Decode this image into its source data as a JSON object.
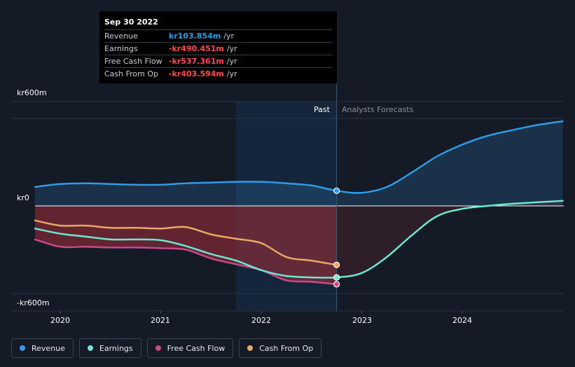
{
  "tooltip": {
    "date": "Sep 30 2022",
    "rows": [
      {
        "label": "Revenue",
        "value": "kr103.854m",
        "unit": "/yr",
        "color": "#2e9be9"
      },
      {
        "label": "Earnings",
        "value": "-kr490.451m",
        "unit": "/yr",
        "color": "#ff4d4f"
      },
      {
        "label": "Free Cash Flow",
        "value": "-kr537.361m",
        "unit": "/yr",
        "color": "#ff4d4f"
      },
      {
        "label": "Cash From Op",
        "value": "-kr403.594m",
        "unit": "/yr",
        "color": "#ff4d4f"
      }
    ]
  },
  "periods": {
    "past": "Past",
    "forecast": "Analysts Forecasts"
  },
  "legend": [
    {
      "label": "Revenue",
      "color": "#2e9be9"
    },
    {
      "label": "Earnings",
      "color": "#6ee7d0"
    },
    {
      "label": "Free Cash Flow",
      "color": "#c9488a"
    },
    {
      "label": "Cash From Op",
      "color": "#e8a866"
    }
  ],
  "chart_data": {
    "type": "line",
    "x_unit": "year",
    "y_unit": "kr m",
    "ylim": [
      -600,
      600
    ],
    "y_ticks": [
      {
        "value": 600,
        "label": "kr600m"
      },
      {
        "value": 0,
        "label": "kr0"
      },
      {
        "value": -600,
        "label": "-kr600m"
      }
    ],
    "x_ticks": [
      {
        "value": 2020,
        "label": "2020"
      },
      {
        "value": 2021,
        "label": "2021"
      },
      {
        "value": 2022,
        "label": "2022"
      },
      {
        "value": 2023,
        "label": "2023"
      },
      {
        "value": 2024,
        "label": "2024"
      }
    ],
    "xlim": [
      2019.5,
      2025.0
    ],
    "past_end": 2022.75,
    "highlight_start": 2021.75,
    "series": [
      {
        "name": "Revenue",
        "color": "#2e9be9",
        "points": [
          [
            2019.75,
            130
          ],
          [
            2020.0,
            150
          ],
          [
            2020.25,
            155
          ],
          [
            2020.5,
            150
          ],
          [
            2020.75,
            145
          ],
          [
            2021.0,
            145
          ],
          [
            2021.25,
            155
          ],
          [
            2021.5,
            160
          ],
          [
            2021.75,
            165
          ],
          [
            2022.0,
            165
          ],
          [
            2022.25,
            155
          ],
          [
            2022.5,
            140
          ],
          [
            2022.75,
            104
          ],
          [
            2023.0,
            90
          ],
          [
            2023.25,
            130
          ],
          [
            2023.5,
            230
          ],
          [
            2023.75,
            340
          ],
          [
            2024.0,
            420
          ],
          [
            2024.25,
            480
          ],
          [
            2024.5,
            520
          ],
          [
            2024.75,
            555
          ],
          [
            2025.0,
            580
          ]
        ]
      },
      {
        "name": "Earnings",
        "color": "#6ee7d0",
        "points": [
          [
            2019.75,
            -155
          ],
          [
            2020.0,
            -190
          ],
          [
            2020.25,
            -210
          ],
          [
            2020.5,
            -230
          ],
          [
            2020.75,
            -230
          ],
          [
            2021.0,
            -235
          ],
          [
            2021.25,
            -275
          ],
          [
            2021.5,
            -330
          ],
          [
            2021.75,
            -375
          ],
          [
            2022.0,
            -440
          ],
          [
            2022.25,
            -480
          ],
          [
            2022.5,
            -490
          ],
          [
            2022.75,
            -490
          ],
          [
            2023.0,
            -460
          ],
          [
            2023.25,
            -350
          ],
          [
            2023.5,
            -200
          ],
          [
            2023.75,
            -70
          ],
          [
            2024.0,
            -20
          ],
          [
            2024.25,
            0
          ],
          [
            2024.5,
            15
          ],
          [
            2024.75,
            25
          ],
          [
            2025.0,
            35
          ]
        ]
      },
      {
        "name": "Free Cash Flow",
        "color": "#c9488a",
        "points": [
          [
            2019.75,
            -230
          ],
          [
            2020.0,
            -280
          ],
          [
            2020.25,
            -280
          ],
          [
            2020.5,
            -285
          ],
          [
            2020.75,
            -285
          ],
          [
            2021.0,
            -290
          ],
          [
            2021.25,
            -300
          ],
          [
            2021.5,
            -360
          ],
          [
            2021.75,
            -400
          ],
          [
            2022.0,
            -440
          ],
          [
            2022.25,
            -510
          ],
          [
            2022.5,
            -520
          ],
          [
            2022.75,
            -537
          ]
        ]
      },
      {
        "name": "Cash From Op",
        "color": "#e8a866",
        "points": [
          [
            2019.75,
            -100
          ],
          [
            2020.0,
            -135
          ],
          [
            2020.25,
            -135
          ],
          [
            2020.5,
            -150
          ],
          [
            2020.75,
            -150
          ],
          [
            2021.0,
            -155
          ],
          [
            2021.25,
            -145
          ],
          [
            2021.5,
            -195
          ],
          [
            2021.75,
            -225
          ],
          [
            2022.0,
            -255
          ],
          [
            2022.25,
            -350
          ],
          [
            2022.5,
            -375
          ],
          [
            2022.75,
            -404
          ]
        ]
      }
    ]
  }
}
